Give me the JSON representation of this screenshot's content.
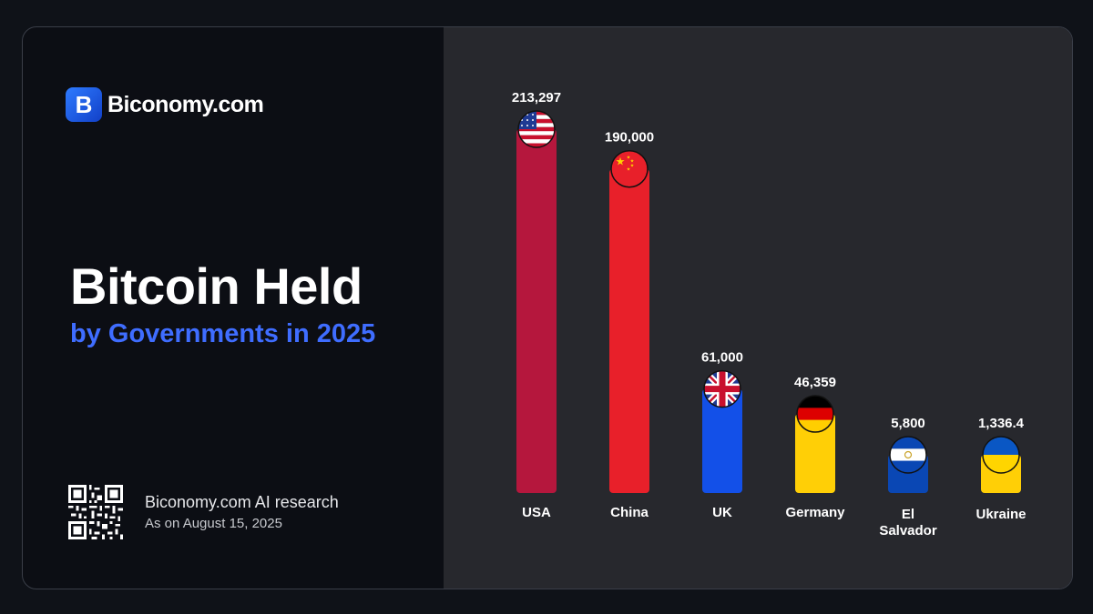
{
  "brand": {
    "name": "Biconomy.com",
    "mark": "B"
  },
  "heading": {
    "title": "Bitcoin Held",
    "subtitle": "by Governments in 2025"
  },
  "footer": {
    "source": "Biconomy.com AI research",
    "date": "As on August 15, 2025"
  },
  "colors": {
    "background": "#0c0e14",
    "panel": "#27282d",
    "accent": "#3f6dff"
  },
  "chart_data": {
    "type": "bar",
    "categories": [
      "USA",
      "China",
      "UK",
      "Germany",
      "El Salvador",
      "Ukraine"
    ],
    "values": [
      213297,
      190000,
      61000,
      46359,
      5800,
      1336.4
    ],
    "value_labels": [
      "213,297",
      "190,000",
      "61,000",
      "46,359",
      "5,800",
      "1,336.4"
    ],
    "bar_colors": [
      "#b5173d",
      "#e8202a",
      "#1350e8",
      "#ffcf06",
      "#0a47b4",
      "#ffcf06"
    ],
    "flags": [
      "usa-flag-icon",
      "china-flag-icon",
      "uk-flag-icon",
      "germany-flag-icon",
      "el-salvador-flag-icon",
      "ukraine-flag-icon"
    ],
    "title": "",
    "xlabel": "",
    "ylabel": "",
    "legend": "none",
    "grid": false
  }
}
